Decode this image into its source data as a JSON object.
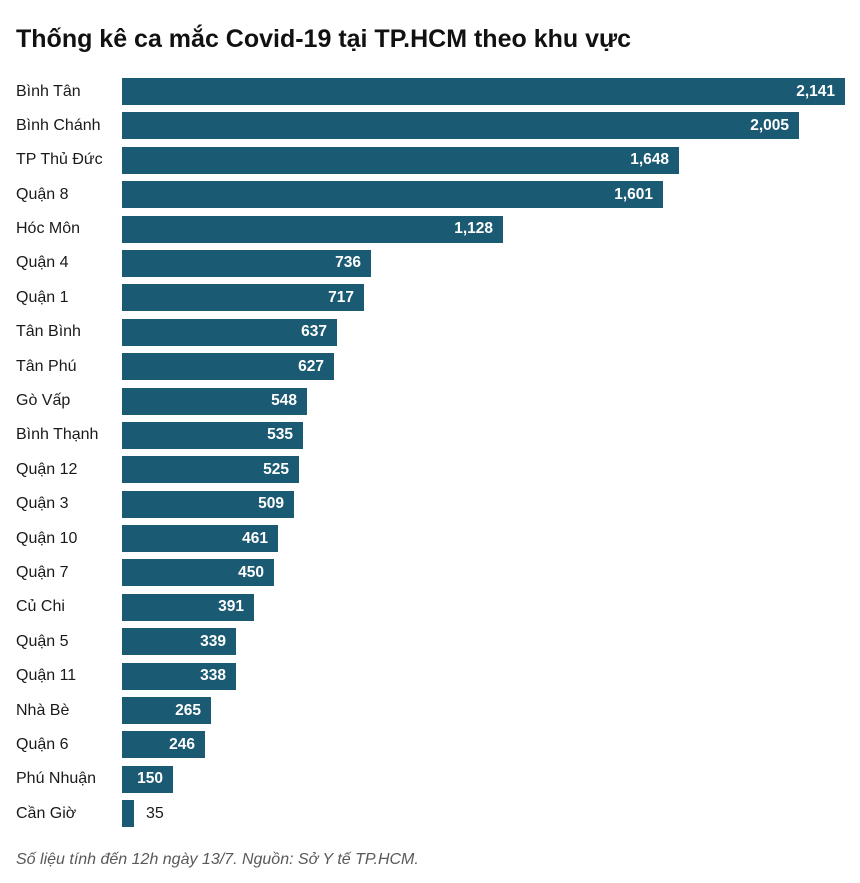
{
  "chart": {
    "title": "Thống kê ca mắc Covid-19 tại TP.HCM theo khu vực",
    "footnote": "Số liệu tính đến 12h ngày 13/7. Nguồn: Sở Y tế TP.HCM."
  },
  "chart_data": {
    "type": "bar",
    "orientation": "horizontal",
    "title": "Thống kê ca mắc Covid-19 tại TP.HCM theo khu vực",
    "categories": [
      "Bình Tân",
      "Bình Chánh",
      "TP Thủ Đức",
      "Quận 8",
      "Hóc Môn",
      "Quận 4",
      "Quận 1",
      "Tân Bình",
      "Tân Phú",
      "Gò Vấp",
      "Bình Thạnh",
      "Quận 12",
      "Quận 3",
      "Quận 10",
      "Quận 7",
      "Củ Chi",
      "Quận 5",
      "Quận 11",
      "Nhà Bè",
      "Quận 6",
      "Phú Nhuận",
      "Cần Giờ"
    ],
    "values": [
      2141,
      2005,
      1648,
      1601,
      1128,
      736,
      717,
      637,
      627,
      548,
      535,
      525,
      509,
      461,
      450,
      391,
      339,
      338,
      265,
      246,
      150,
      35
    ],
    "value_labels": [
      "2,141",
      "2,005",
      "1,648",
      "1,601",
      "1,128",
      "736",
      "717",
      "637",
      "627",
      "548",
      "535",
      "525",
      "509",
      "461",
      "450",
      "391",
      "339",
      "338",
      "265",
      "246",
      "150",
      "35"
    ],
    "xlim": [
      0,
      2141
    ],
    "grid": false,
    "legend": false,
    "bar_color": "#1b5a73",
    "value_label_color_inside": "#ffffff",
    "value_label_color_outside": "#1a1a1a",
    "source_note": "Số liệu tính đến 12h ngày 13/7. Nguồn: Sở Y tế TP.HCM."
  }
}
